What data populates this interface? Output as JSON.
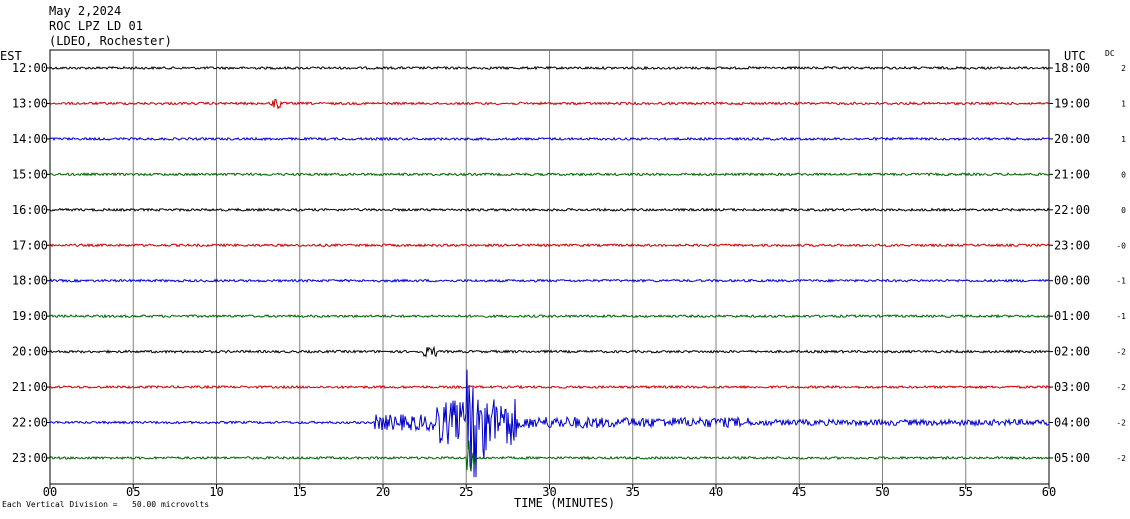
{
  "header": {
    "date": "May 2,2024",
    "station": "ROC LPZ LD 01",
    "network": "(LDEO, Rochester)"
  },
  "axes": {
    "left_label": "EST",
    "right_label": "UTC",
    "dc_label": "DC",
    "x_label": "TIME (MINUTES)",
    "x_ticks": [
      "00",
      "05",
      "10",
      "15",
      "20",
      "25",
      "30",
      "35",
      "40",
      "45",
      "50",
      "55",
      "60"
    ]
  },
  "footer": {
    "scale_note": "Each Vertical Division =   50.00 microvolts"
  },
  "colors": {
    "black": "#000000",
    "red": "#cc0000",
    "blue": "#0000cc",
    "green": "#006600",
    "grid": "#808080"
  },
  "chart_data": {
    "type": "line",
    "title": "ROC LPZ LD 01",
    "xlabel": "TIME (MINUTES)",
    "xlim": [
      0,
      60
    ],
    "rows": [
      {
        "est": "12:00",
        "utc": "18:00",
        "dc": "2",
        "color": "black",
        "events": []
      },
      {
        "est": "13:00",
        "utc": "19:00",
        "dc": "1",
        "color": "red",
        "events": [
          {
            "start": 13.3,
            "end": 13.9,
            "amp": 6
          }
        ]
      },
      {
        "est": "14:00",
        "utc": "20:00",
        "dc": "1",
        "color": "blue",
        "events": []
      },
      {
        "est": "15:00",
        "utc": "21:00",
        "dc": "0",
        "color": "green",
        "events": []
      },
      {
        "est": "16:00",
        "utc": "22:00",
        "dc": "0",
        "color": "black",
        "events": []
      },
      {
        "est": "17:00",
        "utc": "23:00",
        "dc": "-0",
        "color": "red",
        "events": []
      },
      {
        "est": "18:00",
        "utc": "00:00",
        "dc": "-1",
        "color": "blue",
        "events": []
      },
      {
        "est": "19:00",
        "utc": "01:00",
        "dc": "-1",
        "color": "green",
        "events": []
      },
      {
        "est": "20:00",
        "utc": "02:00",
        "dc": "-2",
        "color": "black",
        "events": [
          {
            "start": 22.3,
            "end": 23.2,
            "amp": 5
          }
        ]
      },
      {
        "est": "21:00",
        "utc": "03:00",
        "dc": "-2",
        "color": "red",
        "events": []
      },
      {
        "est": "22:00",
        "utc": "04:00",
        "dc": "-2",
        "color": "blue",
        "events": [
          {
            "start": 19.5,
            "end": 23.0,
            "amp": 8
          },
          {
            "start": 23.0,
            "end": 25.0,
            "amp": 22
          },
          {
            "start": 25.0,
            "end": 26.2,
            "amp": 55
          },
          {
            "start": 26.2,
            "end": 28.0,
            "amp": 25
          },
          {
            "start": 28.0,
            "end": 33.0,
            "amp": 6
          },
          {
            "start": 33.0,
            "end": 42.0,
            "amp": 5
          },
          {
            "start": 42.0,
            "end": 60.0,
            "amp": 3
          }
        ]
      },
      {
        "est": "23:00",
        "utc": "05:00",
        "dc": "-2",
        "color": "green",
        "events": [
          {
            "start": 25.0,
            "end": 25.5,
            "amp": 18
          }
        ]
      }
    ]
  }
}
